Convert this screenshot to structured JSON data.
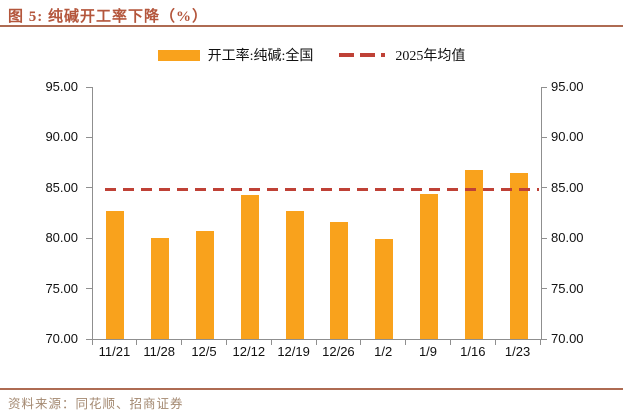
{
  "header": {
    "title": "图 5: 纯碱开工率下降（%）"
  },
  "legend": {
    "bar_label": "开工率:纯碱:全国",
    "line_label": "2025年均值"
  },
  "colors": {
    "bar": "#F9A21C",
    "avg_line": "#BF4136",
    "title_text": "#B4563C",
    "rule": "#AE6B52",
    "axis": "#8F8F8F",
    "source_text": "#A38870"
  },
  "chart_data": {
    "type": "bar",
    "title": "图 5: 纯碱开工率下降（%）",
    "categories": [
      "11/21",
      "11/28",
      "12/5",
      "12/12",
      "12/19",
      "12/26",
      "1/2",
      "1/9",
      "1/16",
      "1/23"
    ],
    "series": [
      {
        "name": "开工率:纯碱:全国",
        "type": "bar",
        "color": "#F9A21C",
        "values": [
          82.7,
          80.0,
          80.7,
          84.3,
          82.7,
          81.6,
          79.9,
          84.4,
          86.8,
          86.5
        ]
      },
      {
        "name": "2025年均值",
        "type": "dashed-horizontal-line",
        "color": "#BF4136",
        "value": 84.8
      }
    ],
    "ylim": [
      70,
      95
    ],
    "ytick_values": [
      95,
      90,
      85,
      80,
      75,
      70
    ],
    "ytick_labels": [
      "95.00",
      "90.00",
      "85.00",
      "80.00",
      "75.00",
      "70.00"
    ],
    "dual_axis": true,
    "grid": false,
    "legend_position": "top"
  },
  "footer": {
    "source": "资料来源：同花顺、招商证券"
  }
}
